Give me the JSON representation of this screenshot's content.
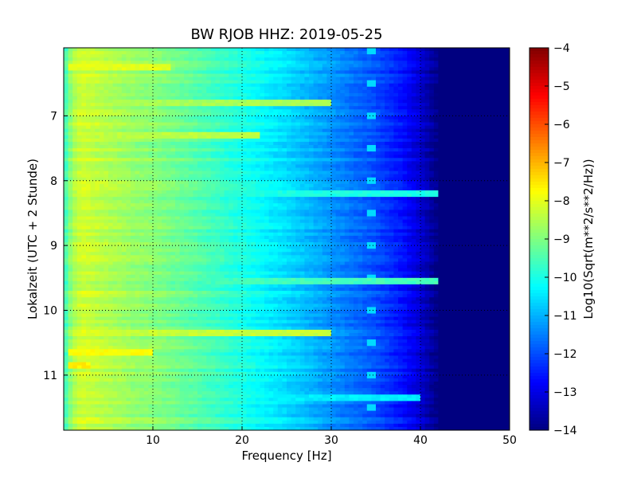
{
  "chart_data": {
    "type": "heatmap",
    "title": "BW RJOB HHZ: 2019-05-25",
    "xlabel": "Frequency [Hz]",
    "ylabel": "Lokalzeit (UTC + 2 Stunde)",
    "xlim": [
      0,
      50
    ],
    "ylim": [
      5.95,
      11.85
    ],
    "y_inverted": true,
    "xticks": [
      10,
      20,
      30,
      40,
      50
    ],
    "yticks": [
      7,
      8,
      9,
      10,
      11
    ],
    "grid": true,
    "colormap": "jet",
    "colorbar": {
      "label": "Log10(Sqrt(m**2/s**2/Hz))",
      "range": [
        -14,
        -4
      ],
      "ticks": [
        -4,
        -5,
        -6,
        -7,
        -8,
        -9,
        -10,
        -11,
        -12,
        -13,
        -14
      ]
    },
    "spectral_model": {
      "freq_points_hz": [
        0,
        1,
        2,
        3,
        5,
        8,
        10,
        15,
        20,
        25,
        30,
        35,
        38,
        40,
        42,
        50
      ],
      "log_amplitude": [
        -9.8,
        -8.6,
        -8.2,
        -8.3,
        -8.5,
        -8.8,
        -8.9,
        -9.4,
        -10.0,
        -10.6,
        -11.3,
        -12.0,
        -12.6,
        -13.2,
        -14.0,
        -14.0
      ],
      "notes": "Broadband noise decreasing with frequency; cutoff near 42 Hz; intermittent narrowband line near 34.5 Hz"
    },
    "horizontal_events": [
      {
        "time": 6.27,
        "f_start": 0.5,
        "f_end": 12,
        "level": -8.0
      },
      {
        "time": 6.8,
        "f_start": 1,
        "f_end": 30,
        "level": -8.6
      },
      {
        "time": 7.3,
        "f_start": 2,
        "f_end": 22,
        "level": -8.4
      },
      {
        "time": 8.2,
        "f_start": 18,
        "f_end": 42,
        "level": -10.0
      },
      {
        "time": 9.55,
        "f_start": 2,
        "f_end": 42,
        "level": -9.6
      },
      {
        "time": 10.33,
        "f_start": 1,
        "f_end": 30,
        "level": -8.3
      },
      {
        "time": 10.67,
        "f_start": 0.5,
        "f_end": 10,
        "level": -7.8
      },
      {
        "time": 10.87,
        "f_start": 0.5,
        "f_end": 3,
        "level": -7.6
      },
      {
        "time": 11.35,
        "f_start": 1,
        "f_end": 40,
        "level": -10.4
      }
    ],
    "narrowband_line": {
      "freq_hz": 34.5,
      "level": -10.6
    }
  }
}
